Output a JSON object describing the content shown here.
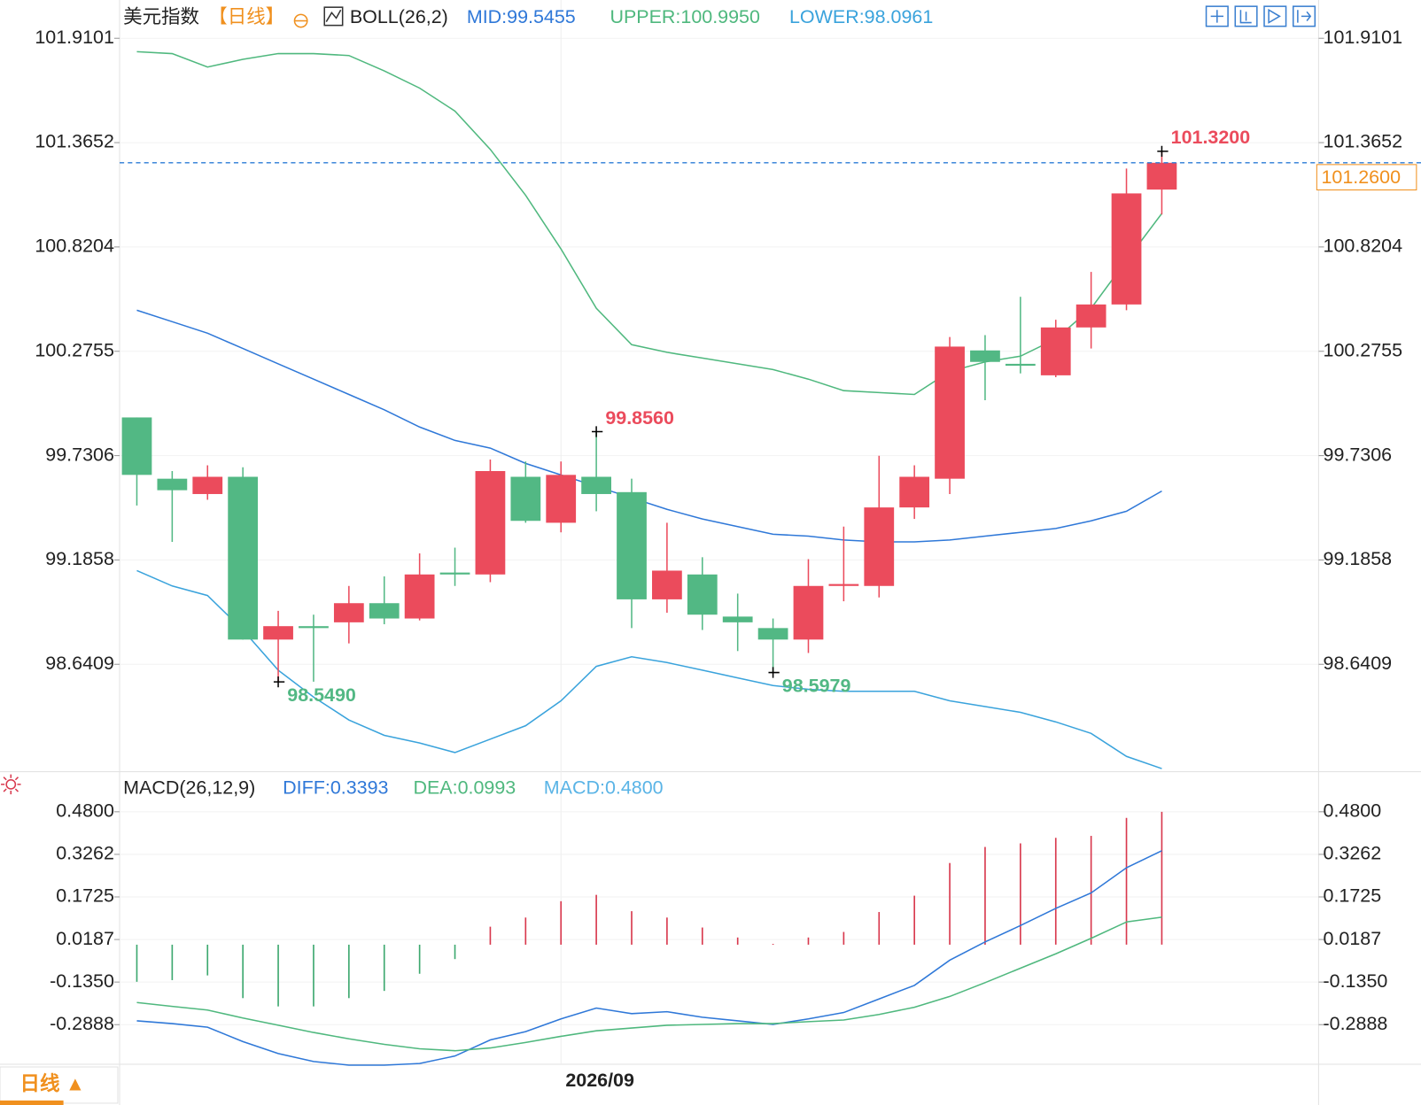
{
  "chart_data": [
    {
      "type": "candlestick",
      "title": "美元指数",
      "period": "【日线】",
      "indicator": "BOLL(26,2)",
      "categories": [
        null,
        null,
        null,
        null,
        null,
        null,
        null,
        null,
        null,
        null,
        null,
        null,
        "2026/09",
        null,
        null,
        null,
        null,
        null,
        null,
        null,
        null,
        null,
        null,
        null,
        null,
        null,
        null,
        null,
        null,
        null
      ],
      "open": [
        99.93,
        99.61,
        99.53,
        99.62,
        98.77,
        98.84,
        98.86,
        98.96,
        98.88,
        99.12,
        99.11,
        99.62,
        99.38,
        99.62,
        99.54,
        98.98,
        99.11,
        98.89,
        98.83,
        98.77,
        99.05,
        99.05,
        99.46,
        99.61,
        100.28,
        100.21,
        100.15,
        100.4,
        100.52,
        101.12
      ],
      "high": [
        99.93,
        99.65,
        99.68,
        99.67,
        98.92,
        98.9,
        99.05,
        99.1,
        99.22,
        99.25,
        99.71,
        99.7,
        99.7,
        99.856,
        99.61,
        99.38,
        99.2,
        99.01,
        98.88,
        99.19,
        99.36,
        99.73,
        99.68,
        100.35,
        100.36,
        100.56,
        100.44,
        100.69,
        101.23,
        101.32
      ],
      "low": [
        99.47,
        99.28,
        99.5,
        98.77,
        98.549,
        98.55,
        98.75,
        98.85,
        98.87,
        99.05,
        99.07,
        99.38,
        99.33,
        99.44,
        98.83,
        98.91,
        98.82,
        98.71,
        98.5979,
        98.7,
        98.97,
        98.99,
        99.4,
        99.53,
        100.02,
        100.16,
        100.14,
        100.29,
        100.49,
        100.99
      ],
      "close": [
        99.63,
        99.55,
        99.62,
        98.77,
        98.84,
        98.83,
        98.96,
        98.88,
        99.11,
        99.11,
        99.65,
        99.39,
        99.63,
        99.53,
        98.98,
        99.13,
        98.9,
        98.86,
        98.77,
        99.05,
        99.06,
        99.46,
        99.62,
        100.3,
        100.22,
        100.2,
        100.4,
        100.52,
        101.1,
        101.26
      ],
      "up_color": "#eb4b5c",
      "down_color": "#52b884",
      "series": [
        {
          "name": "MID:99.5455",
          "color": "#2f78d8",
          "values": [
            100.49,
            100.43,
            100.37,
            100.29,
            100.21,
            100.13,
            100.05,
            99.97,
            99.88,
            99.81,
            99.77,
            99.69,
            99.63,
            99.57,
            99.51,
            99.45,
            99.4,
            99.36,
            99.32,
            99.31,
            99.29,
            99.28,
            99.28,
            99.29,
            99.31,
            99.33,
            99.35,
            99.39,
            99.44,
            99.5455
          ]
        },
        {
          "name": "UPPER:100.9950",
          "color": "#4fb87e",
          "values": [
            101.84,
            101.83,
            101.76,
            101.8,
            101.83,
            101.83,
            101.82,
            101.74,
            101.65,
            101.53,
            101.33,
            101.09,
            100.81,
            100.5,
            100.31,
            100.27,
            100.24,
            100.21,
            100.18,
            100.13,
            100.07,
            100.06,
            100.05,
            100.17,
            100.22,
            100.25,
            100.34,
            100.5,
            100.75,
            100.995
          ]
        },
        {
          "name": "LOWER:98.0961",
          "color": "#3aa3dc",
          "values": [
            99.13,
            99.05,
            99.0,
            98.82,
            98.61,
            98.47,
            98.35,
            98.27,
            98.23,
            98.18,
            98.25,
            98.32,
            98.45,
            98.63,
            98.68,
            98.65,
            98.61,
            98.57,
            98.53,
            98.51,
            98.5,
            98.5,
            98.5,
            98.45,
            98.42,
            98.39,
            98.34,
            98.28,
            98.16,
            98.0961
          ]
        }
      ],
      "ylim": [
        98.08,
        102.11
      ],
      "yticks": [
        101.9101,
        101.3652,
        100.8204,
        100.2755,
        99.7306,
        99.1858,
        98.6409
      ],
      "annotations": [
        {
          "label": "101.3200",
          "value": 101.32,
          "index": 29,
          "color": "#eb4b5c"
        },
        {
          "label": "99.8560",
          "value": 99.856,
          "index": 13,
          "color": "#eb4b5c"
        },
        {
          "label": "98.5490",
          "value": 98.549,
          "index": 4,
          "color": "#52b884"
        },
        {
          "label": "98.5979",
          "value": 98.5979,
          "index": 18,
          "color": "#52b884"
        }
      ],
      "last_price": {
        "value": 101.26,
        "label": "101.2600",
        "color": "#f0901e",
        "line_color": "#2a7bd6"
      },
      "grid": true
    },
    {
      "type": "macd",
      "title": "MACD(26,12,9)",
      "up_color": "#d8384d",
      "down_color": "#3da86f",
      "series": [
        {
          "name": "DIFF:0.3393",
          "color": "#2f78d8",
          "kind": "line",
          "values": [
            -0.275,
            -0.285,
            -0.298,
            -0.35,
            -0.393,
            -0.422,
            -0.435,
            -0.435,
            -0.429,
            -0.402,
            -0.344,
            -0.314,
            -0.268,
            -0.229,
            -0.249,
            -0.242,
            -0.262,
            -0.275,
            -0.288,
            -0.268,
            -0.245,
            -0.196,
            -0.147,
            -0.056,
            0.01,
            0.069,
            0.131,
            0.187,
            0.278,
            0.3393
          ]
        },
        {
          "name": "DEA:0.0993",
          "color": "#4fb87e",
          "kind": "line",
          "values": [
            -0.209,
            -0.223,
            -0.236,
            -0.265,
            -0.291,
            -0.317,
            -0.34,
            -0.36,
            -0.376,
            -0.383,
            -0.373,
            -0.353,
            -0.331,
            -0.311,
            -0.301,
            -0.291,
            -0.288,
            -0.285,
            -0.285,
            -0.278,
            -0.272,
            -0.252,
            -0.226,
            -0.187,
            -0.137,
            -0.085,
            -0.033,
            0.023,
            0.082,
            0.0993
          ]
        },
        {
          "name": "MACD:0.4800",
          "color": "#5ab4e6",
          "kind": "histogram",
          "values": [
            -0.134,
            -0.128,
            -0.111,
            -0.193,
            -0.223,
            -0.223,
            -0.193,
            -0.167,
            -0.105,
            -0.052,
            0.065,
            0.098,
            0.157,
            0.18,
            0.121,
            0.098,
            0.062,
            0.026,
            0.003,
            0.026,
            0.046,
            0.118,
            0.177,
            0.295,
            0.353,
            0.366,
            0.386,
            0.393,
            0.458,
            0.48
          ]
        }
      ],
      "ylim": [
        -0.422,
        0.615
      ],
      "yticks": [
        {
          "value": 0.48,
          "label": "0.4800"
        },
        0.3262,
        0.1725,
        0.0187,
        {
          "value": -0.135,
          "label": "-0.1350"
        },
        -0.2888
      ],
      "grid": true
    }
  ],
  "toolbar": {
    "tab": "日线 ▲"
  }
}
